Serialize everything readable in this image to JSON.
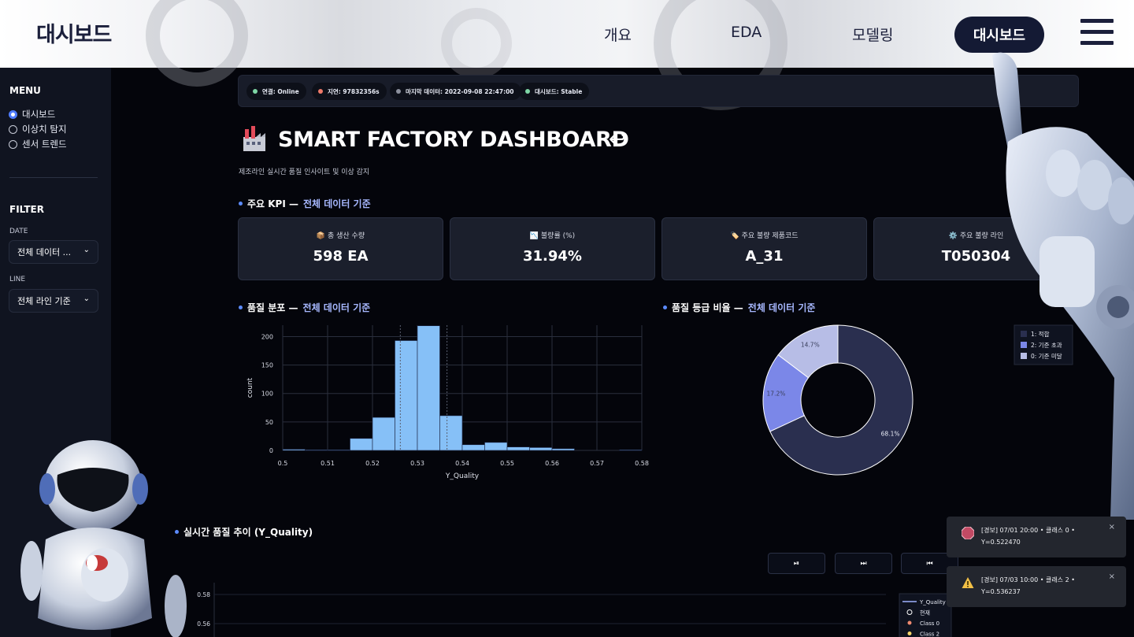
{
  "nav": {
    "brand": "대시보드",
    "links": [
      "개요",
      "EDA",
      "모델링"
    ],
    "active": "대시보드"
  },
  "sidebar": {
    "menu_heading": "MENU",
    "menu_items": [
      "대시보드",
      "이상치 탐지",
      "센서 트렌드"
    ],
    "selected_index": 0,
    "filter_heading": "FILTER",
    "date_label": "DATE",
    "date_value": "전체 데이터 ...",
    "line_label": "LINE",
    "line_value": "전체 라인 기준"
  },
  "status": {
    "connection": "연결: Online",
    "latency": "지연: 97832356s",
    "last_data": "마지막 데이터: 2022-09-08 22:47:00",
    "dashboard": "대시보드: Stable",
    "colors": {
      "online": "#7ed6a5",
      "latency": "#ef7a6a",
      "last_data": "#8b8f9c",
      "dashboard": "#7ed6a5"
    }
  },
  "header": {
    "title": "SMART FACTORY DASHBOARD",
    "link_icon": "link-icon",
    "subtitle": "제조라인 실시간 품질 인사이트 및 이상 감지"
  },
  "kpi_section": {
    "title": "주요 KPI —",
    "highlight": "전체 데이터 기준"
  },
  "kpis": [
    {
      "icon": "📦",
      "label": "총 생산 수량",
      "value": "598 EA"
    },
    {
      "icon": "📉",
      "label": "불량률 (%)",
      "value": "31.94%"
    },
    {
      "icon": "🏷️",
      "label": "주요 불량 제품코드",
      "value": "A_31"
    },
    {
      "icon": "⚙️",
      "label": "주요 불량 라인",
      "value": "T050304"
    }
  ],
  "hist_section": {
    "title": "품질 분포 —",
    "highlight": "전체 데이터 기준"
  },
  "donut_section": {
    "title": "품질 등급 비율 —",
    "highlight": "전체 데이터 기준"
  },
  "trend_section": {
    "title": "실시간 품질 추이 (Y_Quality)"
  },
  "chart_data": [
    {
      "type": "bar",
      "xlabel": "Y_Quality",
      "ylabel": "count",
      "xlim": [
        0.5,
        0.58
      ],
      "ylim": [
        0,
        220
      ],
      "x_ticks": [
        "0.5",
        "0.51",
        "0.52",
        "0.53",
        "0.54",
        "0.55",
        "0.56",
        "0.57",
        "0.58"
      ],
      "y_ticks": [
        "0",
        "50",
        "100",
        "150",
        "200"
      ],
      "bin_width": 0.005,
      "bins": [
        {
          "x0": 0.5,
          "count": 2
        },
        {
          "x0": 0.505,
          "count": 1
        },
        {
          "x0": 0.51,
          "count": 1
        },
        {
          "x0": 0.515,
          "count": 21
        },
        {
          "x0": 0.52,
          "count": 58
        },
        {
          "x0": 0.525,
          "count": 193
        },
        {
          "x0": 0.53,
          "count": 219
        },
        {
          "x0": 0.535,
          "count": 61
        },
        {
          "x0": 0.54,
          "count": 10
        },
        {
          "x0": 0.545,
          "count": 14
        },
        {
          "x0": 0.55,
          "count": 6
        },
        {
          "x0": 0.555,
          "count": 5
        },
        {
          "x0": 0.56,
          "count": 3
        },
        {
          "x0": 0.575,
          "count": 1
        }
      ],
      "threshold_lines": [
        0.5262,
        0.5366
      ],
      "bar_color": "#86c0f7"
    },
    {
      "type": "pie",
      "donut": true,
      "legend_position": "top-right",
      "slices": [
        {
          "name": "1: 적합",
          "value": 68.1,
          "label": "68.1%",
          "color": "#2a2f4f"
        },
        {
          "name": "2: 기준 초과",
          "value": 17.2,
          "label": "17.2%",
          "color": "#7b87e8"
        },
        {
          "name": "0: 기준 미달",
          "value": 14.7,
          "label": "14.7%",
          "color": "#b7bde6"
        }
      ]
    },
    {
      "type": "line",
      "y_ticks": [
        "0.58",
        "0.56"
      ],
      "legend": [
        "Y_Quality",
        "현재",
        "Class 0",
        "Class 2"
      ],
      "legend_colors": [
        "#9fb2ff",
        "#ffffff",
        "#f08a70",
        "#f5d56b"
      ]
    }
  ],
  "controls": {
    "play": "⏯",
    "forward": "⏭",
    "rewind": "⏮"
  },
  "alerts": [
    {
      "icon": "stop-icon",
      "text": "[경보] 07/01 20:00 • 클래스 0 • Y=0.522470"
    },
    {
      "icon": "warning-icon",
      "text": "[경보] 07/03 10:00 • 클래스 2 • Y=0.536237"
    }
  ],
  "close_glyph": "×"
}
